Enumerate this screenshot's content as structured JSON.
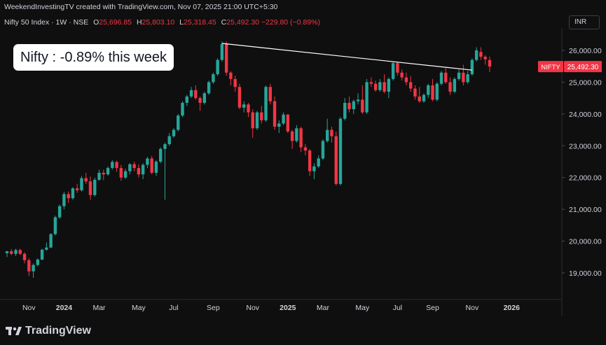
{
  "header": {
    "credit": "WeekendInvestingTV created with TradingView.com, Nov 07, 2025 21:00 UTC+5:30",
    "symbol": "Nifty 50 Index · 1W · NSE",
    "open_label": "O",
    "open": "25,696.85",
    "high_label": "H",
    "high": "25,803.10",
    "low_label": "L",
    "low": "25,318.45",
    "close_label": "C",
    "close": "25,492.30",
    "change": "−229.80 (−0.89%)"
  },
  "currency": "INR",
  "callout": "Nifty : -0.89% this week",
  "price_tag": {
    "name": "NIFTY",
    "value": "25,492.30"
  },
  "brand": "TradingView",
  "colors": {
    "up": "#26a69a",
    "down": "#f23645",
    "background": "#0f0f0f",
    "trendline": "#ffffff"
  },
  "chart_data": {
    "type": "candlestick",
    "timeframe": "1W",
    "ylim": [
      18500,
      26500
    ],
    "y_ticks": [
      19000,
      20000,
      21000,
      22000,
      23000,
      24000,
      25000,
      26000
    ],
    "y_tick_labels": [
      "19,000.00",
      "20,000.00",
      "21,000.00",
      "22,000.00",
      "23,000.00",
      "24,000.00",
      "25,000.00",
      "26,000.00"
    ],
    "x_ticks": [
      {
        "week": 5,
        "label": "Nov"
      },
      {
        "week": 13,
        "label": "2024"
      },
      {
        "week": 21,
        "label": "Mar"
      },
      {
        "week": 30,
        "label": "May"
      },
      {
        "week": 38,
        "label": "Jul"
      },
      {
        "week": 47,
        "label": "Sep"
      },
      {
        "week": 56,
        "label": "Nov"
      },
      {
        "week": 64,
        "label": "2025"
      },
      {
        "week": 72,
        "label": "Mar"
      },
      {
        "week": 81,
        "label": "May"
      },
      {
        "week": 89,
        "label": "Jul"
      },
      {
        "week": 97,
        "label": "Sep"
      },
      {
        "week": 106,
        "label": "Nov"
      },
      {
        "week": 115,
        "label": "2026"
      }
    ],
    "x_range": [
      0,
      118
    ],
    "trendline": {
      "from": {
        "week": 49,
        "value": 26220
      },
      "to": {
        "week": 106,
        "value": 25380
      }
    },
    "candles": [
      [
        19620,
        19700,
        19500,
        19680
      ],
      [
        19680,
        19750,
        19560,
        19600
      ],
      [
        19600,
        19760,
        19530,
        19720
      ],
      [
        19720,
        19760,
        19560,
        19600
      ],
      [
        19600,
        19650,
        19300,
        19400
      ],
      [
        19400,
        19460,
        18900,
        19050
      ],
      [
        19050,
        19300,
        18850,
        19250
      ],
      [
        19250,
        19460,
        19200,
        19420
      ],
      [
        19420,
        19760,
        19400,
        19730
      ],
      [
        19730,
        19960,
        19700,
        19800
      ],
      [
        19800,
        20250,
        19780,
        20220
      ],
      [
        20220,
        20800,
        20180,
        20750
      ],
      [
        20750,
        21150,
        20700,
        21100
      ],
      [
        21100,
        21550,
        21000,
        21480
      ],
      [
        21480,
        21560,
        21200,
        21350
      ],
      [
        21350,
        21700,
        21300,
        21660
      ],
      [
        21660,
        21800,
        21520,
        21600
      ],
      [
        21600,
        22050,
        21560,
        21980
      ],
      [
        21980,
        22150,
        21800,
        21880
      ],
      [
        21880,
        22030,
        21300,
        21450
      ],
      [
        21450,
        22000,
        21400,
        21930
      ],
      [
        21930,
        22250,
        21900,
        22150
      ],
      [
        22150,
        22250,
        21920,
        22100
      ],
      [
        22100,
        22350,
        22060,
        22300
      ],
      [
        22300,
        22550,
        22250,
        22490
      ],
      [
        22490,
        22530,
        22180,
        22300
      ],
      [
        22300,
        22400,
        21900,
        22000
      ],
      [
        22000,
        22280,
        21950,
        22200
      ],
      [
        22200,
        22450,
        22100,
        22420
      ],
      [
        22420,
        22500,
        22200,
        22300
      ],
      [
        22300,
        22420,
        22000,
        22100
      ],
      [
        22100,
        22450,
        21950,
        22400
      ],
      [
        22400,
        22650,
        22300,
        22600
      ],
      [
        22600,
        22680,
        22100,
        22150
      ],
      [
        22150,
        22550,
        22050,
        22500
      ],
      [
        22500,
        22950,
        22450,
        22900
      ],
      [
        22900,
        23100,
        21300,
        23050
      ],
      [
        23050,
        23400,
        23000,
        23300
      ],
      [
        23300,
        23550,
        23250,
        23500
      ],
      [
        23500,
        24000,
        23450,
        23950
      ],
      [
        23950,
        24400,
        23900,
        24350
      ],
      [
        24350,
        24600,
        24250,
        24550
      ],
      [
        24550,
        24850,
        24500,
        24750
      ],
      [
        24750,
        24900,
        24450,
        24500
      ],
      [
        24500,
        24550,
        24100,
        24350
      ],
      [
        24350,
        24700,
        24300,
        24650
      ],
      [
        24650,
        25050,
        24600,
        25000
      ],
      [
        25000,
        25300,
        24950,
        25250
      ],
      [
        25250,
        25750,
        25200,
        25700
      ],
      [
        25700,
        26280,
        25650,
        26200
      ],
      [
        26200,
        26280,
        25200,
        25300
      ],
      [
        25300,
        25350,
        24900,
        25100
      ],
      [
        25100,
        25200,
        24700,
        24850
      ],
      [
        24850,
        24950,
        24150,
        24200
      ],
      [
        24200,
        24400,
        24050,
        24300
      ],
      [
        24300,
        24350,
        23900,
        24050
      ],
      [
        24050,
        24150,
        23250,
        23550
      ],
      [
        23550,
        24100,
        23500,
        24050
      ],
      [
        24050,
        24250,
        23700,
        23800
      ],
      [
        23800,
        24900,
        23750,
        24850
      ],
      [
        24850,
        24950,
        24300,
        24400
      ],
      [
        24400,
        24550,
        23500,
        23600
      ],
      [
        23600,
        23800,
        23400,
        23700
      ],
      [
        23700,
        24050,
        23650,
        23980
      ],
      [
        23980,
        24000,
        23400,
        23450
      ],
      [
        23450,
        23500,
        22900,
        23150
      ],
      [
        23150,
        23650,
        23100,
        23550
      ],
      [
        23550,
        23600,
        22800,
        22950
      ],
      [
        22950,
        23050,
        22700,
        22850
      ],
      [
        22850,
        22900,
        22050,
        22200
      ],
      [
        22200,
        22450,
        21950,
        22350
      ],
      [
        22350,
        22700,
        22300,
        22600
      ],
      [
        22600,
        23200,
        22550,
        23150
      ],
      [
        23150,
        23850,
        23100,
        23500
      ],
      [
        23500,
        23600,
        23100,
        23300
      ],
      [
        23300,
        23450,
        21750,
        21800
      ],
      [
        21800,
        23900,
        21750,
        23850
      ],
      [
        23850,
        24500,
        23800,
        24350
      ],
      [
        24350,
        24550,
        24050,
        24150
      ],
      [
        24150,
        24450,
        24000,
        24400
      ],
      [
        24400,
        24650,
        24300,
        24450
      ],
      [
        24450,
        24900,
        24000,
        24050
      ],
      [
        24050,
        25100,
        24000,
        25000
      ],
      [
        25000,
        25150,
        24850,
        24950
      ],
      [
        24950,
        25050,
        24700,
        24750
      ],
      [
        24750,
        25100,
        24700,
        25000
      ],
      [
        25000,
        25250,
        24650,
        24700
      ],
      [
        24700,
        25150,
        24500,
        25100
      ],
      [
        25100,
        25650,
        25050,
        25600
      ],
      [
        25600,
        25650,
        25200,
        25300
      ],
      [
        25300,
        25400,
        25050,
        25150
      ],
      [
        25150,
        25300,
        24900,
        25000
      ],
      [
        25000,
        25200,
        24700,
        24800
      ],
      [
        24800,
        24900,
        24450,
        24550
      ],
      [
        24550,
        24850,
        24350,
        24400
      ],
      [
        24400,
        24650,
        24350,
        24600
      ],
      [
        24600,
        24950,
        24500,
        24900
      ],
      [
        24900,
        25100,
        24400,
        24450
      ],
      [
        24450,
        25000,
        24400,
        24950
      ],
      [
        24950,
        25350,
        24900,
        25300
      ],
      [
        25300,
        25450,
        24950,
        25000
      ],
      [
        25000,
        25150,
        24600,
        24700
      ],
      [
        24700,
        25150,
        24650,
        25100
      ],
      [
        25100,
        25400,
        25050,
        25300
      ],
      [
        25300,
        25550,
        24900,
        25000
      ],
      [
        25000,
        25350,
        24950,
        25250
      ],
      [
        25250,
        25750,
        25200,
        25700
      ],
      [
        25700,
        26100,
        25650,
        26000
      ],
      [
        25950,
        26100,
        25700,
        25800
      ],
      [
        25800,
        25850,
        25550,
        25722
      ],
      [
        25696.85,
        25803.1,
        25318.45,
        25492.3
      ]
    ]
  }
}
